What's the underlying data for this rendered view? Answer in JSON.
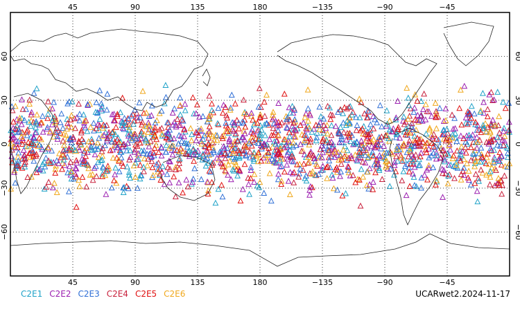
{
  "top_axis_labels": [
    "45",
    "90",
    "135",
    "180",
    "−135",
    "−90",
    "−45"
  ],
  "bottom_axis_labels": [
    "45",
    "90",
    "135",
    "180",
    "−135",
    "−90",
    "−45"
  ],
  "left_axis_labels": [
    "60",
    "30",
    "0",
    "−30",
    "−60"
  ],
  "right_axis_labels": [
    "60",
    "30",
    "0",
    "−30",
    "−60"
  ],
  "legend": [
    {
      "label": "C2E1",
      "color": "#1fa2c8"
    },
    {
      "label": "C2E2",
      "color": "#9b1fb0"
    },
    {
      "label": "C2E3",
      "color": "#2f6fd6"
    },
    {
      "label": "C2E4",
      "color": "#c8203c"
    },
    {
      "label": "C2E5",
      "color": "#e01010"
    },
    {
      "label": "C2E6",
      "color": "#f0a81c"
    }
  ],
  "product_label": "UCARwet2.2024-11-17",
  "map": {
    "projection": "cylindrical equidistant",
    "lon_start": 0,
    "lon_end": 360,
    "lat_top": 90,
    "lat_bottom": -90,
    "lon_grid": [
      45,
      90,
      135,
      180,
      225,
      270,
      315
    ],
    "lat_grid": [
      60,
      30,
      0,
      -30,
      -60
    ],
    "observation_lat_range": [
      -45,
      45
    ],
    "marker": "open-triangle"
  }
}
